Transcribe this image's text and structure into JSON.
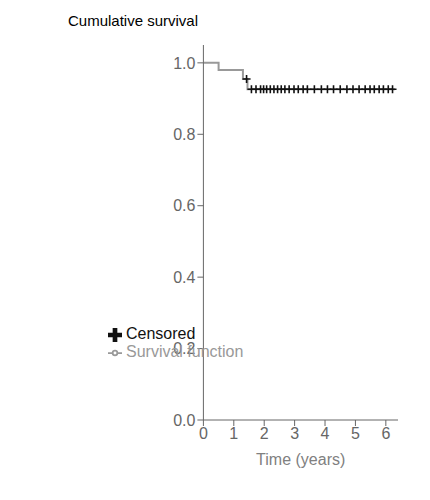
{
  "chart_data": {
    "type": "line",
    "title": "Cumulative survival",
    "xlabel": "Time (years)",
    "xlim": [
      0,
      6.4
    ],
    "ylim": [
      0.0,
      1.05
    ],
    "xticks": [
      0,
      1,
      2,
      3,
      4,
      5,
      6
    ],
    "yticks": [
      {
        "value": 0.0,
        "label": "0.0"
      },
      0.2,
      0.4,
      0.6,
      0.8,
      {
        "value": 1.0,
        "label": "1.0"
      }
    ],
    "grid": false,
    "legend": "lower left",
    "series": [
      {
        "name": "Survival function",
        "type": "line",
        "color": "#999999",
        "x": [
          0,
          0.5,
          0.5,
          1.3,
          1.3,
          1.45,
          1.45,
          6.3
        ],
        "values": [
          1.0,
          1.0,
          0.98,
          0.98,
          0.955,
          0.955,
          0.926,
          0.926
        ]
      },
      {
        "name": "Censored",
        "type": "scatter",
        "marker": "+",
        "color": "#111111",
        "x": [
          1.42,
          1.58,
          1.73,
          1.88,
          1.98,
          2.08,
          2.2,
          2.32,
          2.44,
          2.56,
          2.68,
          2.82,
          2.98,
          3.12,
          3.28,
          3.42,
          3.65,
          3.88,
          4.08,
          4.28,
          4.5,
          4.72,
          4.92,
          5.12,
          5.32,
          5.48,
          5.62,
          5.78,
          5.92,
          6.08,
          6.22
        ],
        "values": [
          0.955,
          0.926,
          0.926,
          0.926,
          0.926,
          0.926,
          0.926,
          0.926,
          0.926,
          0.926,
          0.926,
          0.926,
          0.926,
          0.926,
          0.926,
          0.926,
          0.926,
          0.926,
          0.926,
          0.926,
          0.926,
          0.926,
          0.926,
          0.926,
          0.926,
          0.926,
          0.926,
          0.926,
          0.926,
          0.926,
          0.926
        ]
      }
    ]
  }
}
